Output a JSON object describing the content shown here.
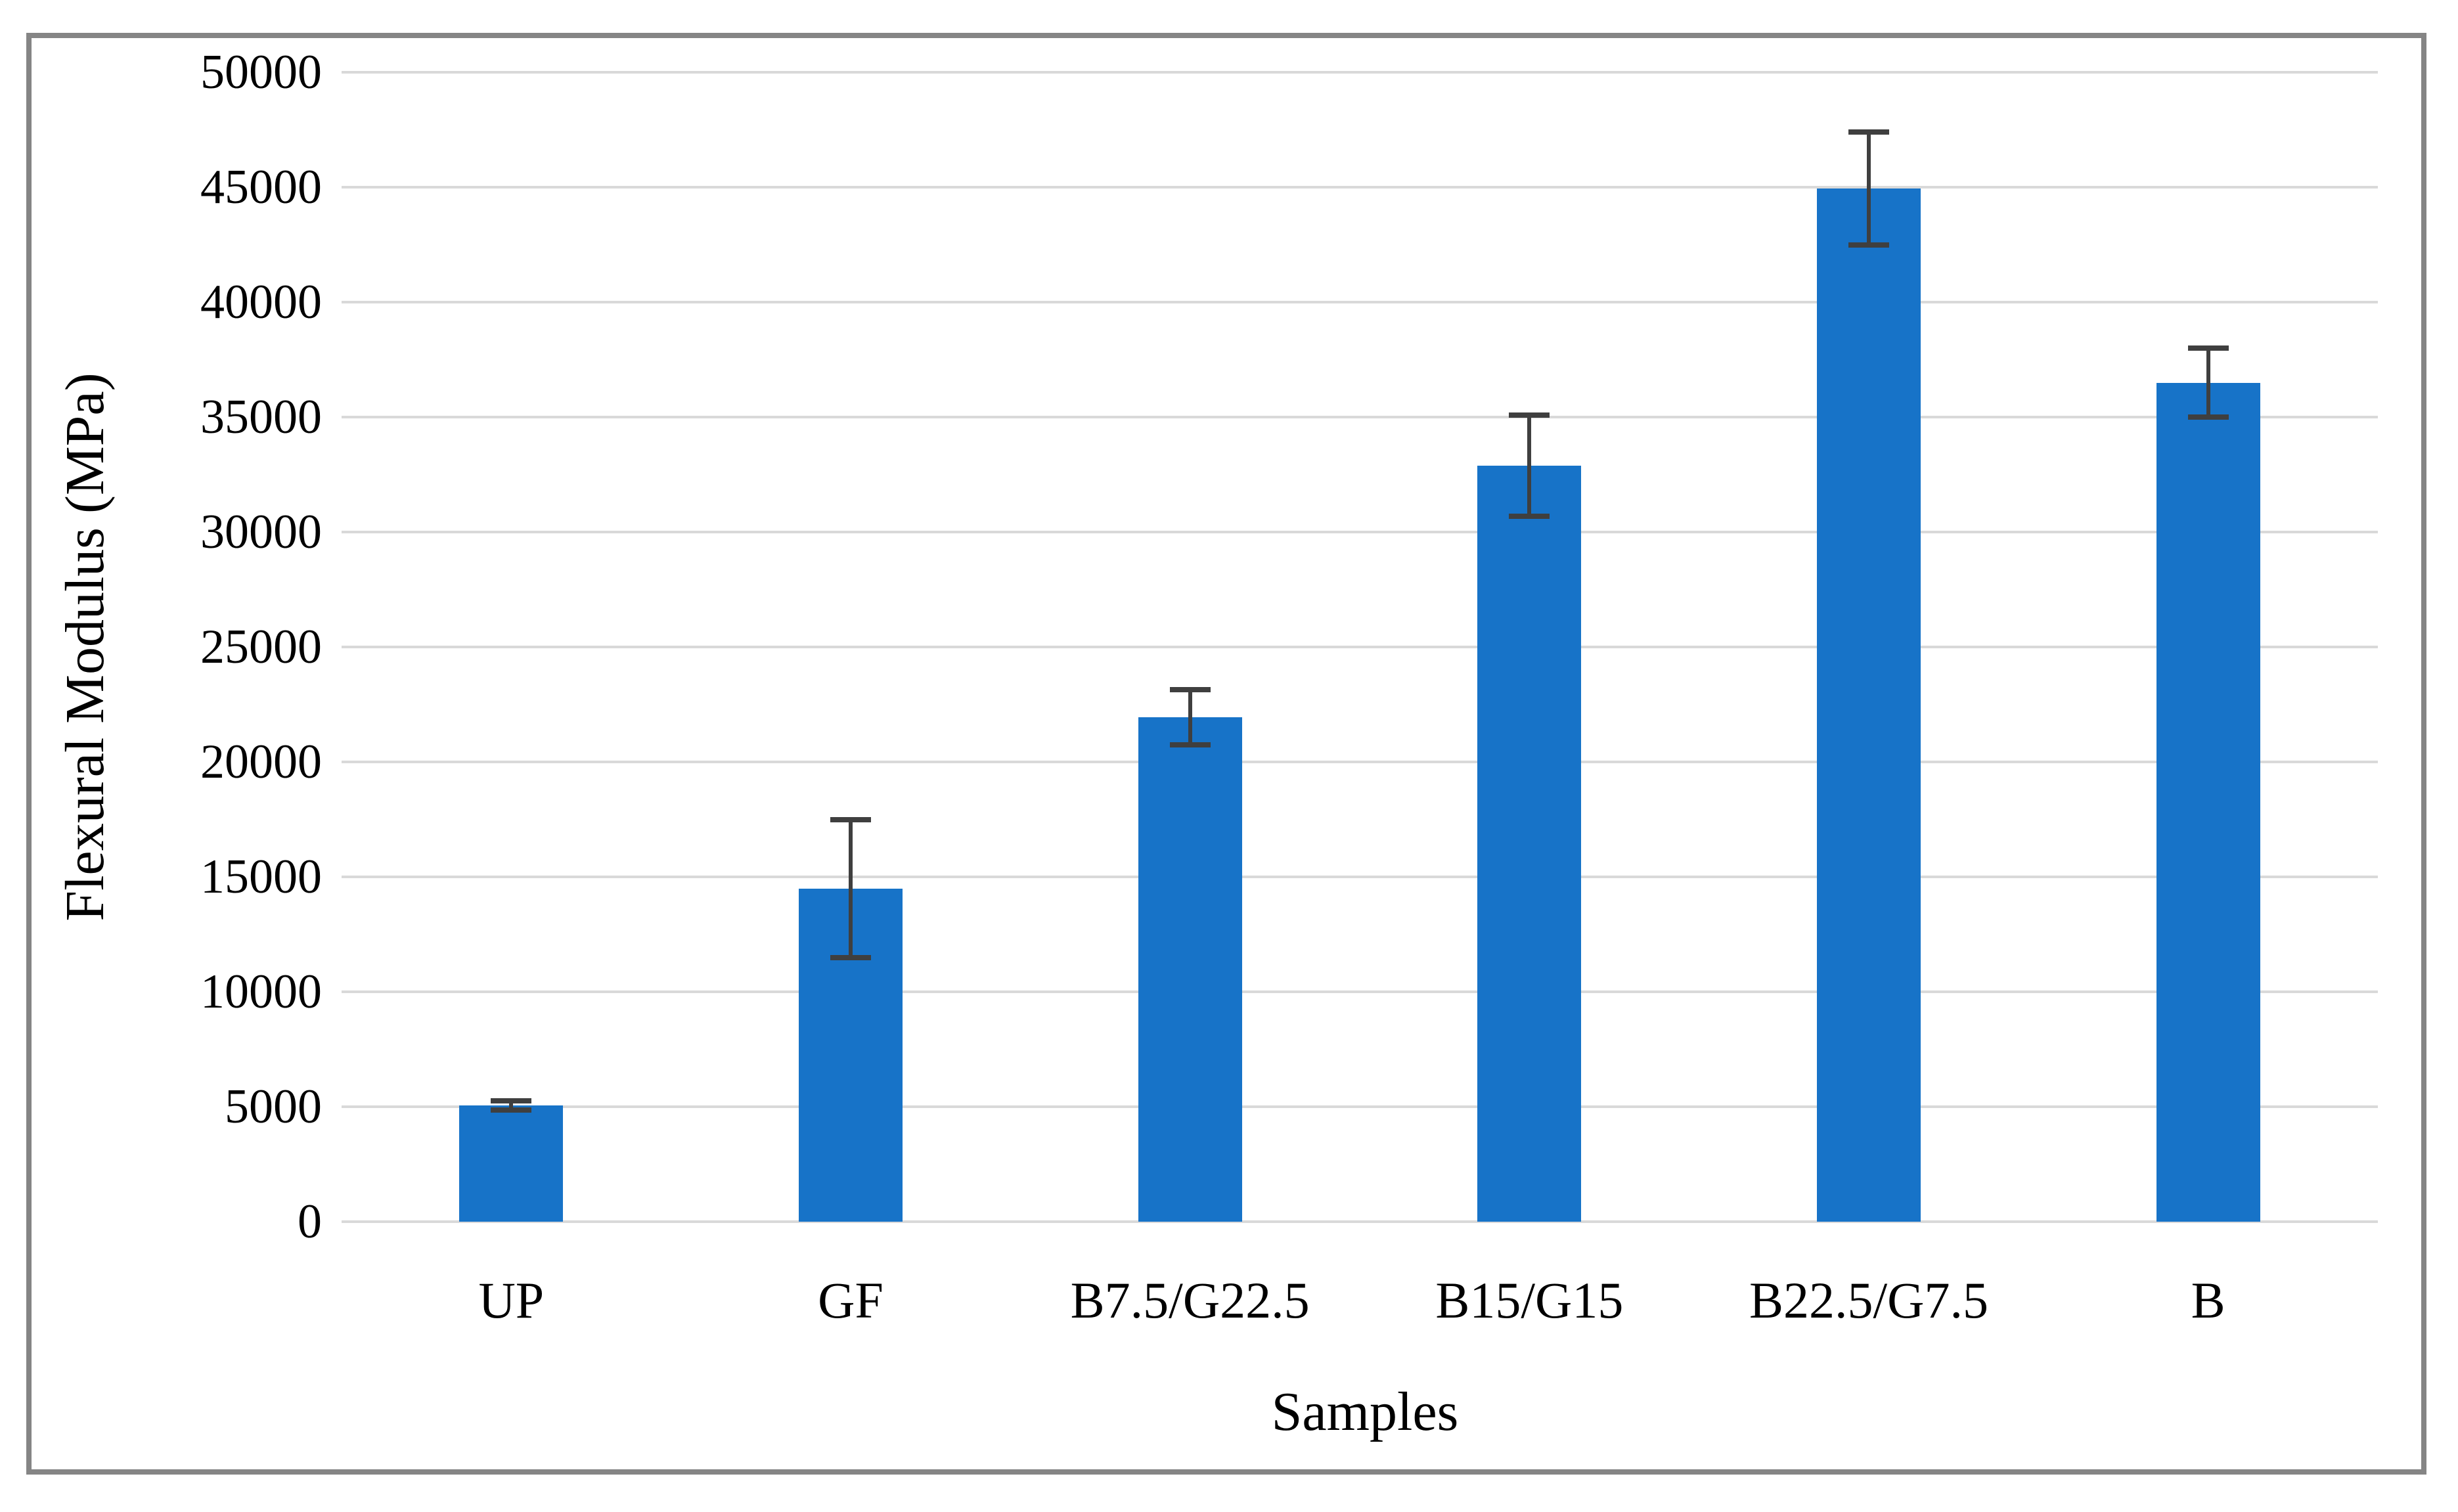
{
  "figure": {
    "background": "#ffffff",
    "border_color": "#858585"
  },
  "colors": {
    "bar": "#1773C8",
    "gridline": "#D9D9D9",
    "axis_line": "#D9D9D9",
    "error_bar": "#3F3F3F",
    "text": "#000000",
    "border": "#858585"
  },
  "chart_data": {
    "type": "bar",
    "title": "",
    "xlabel": "Samples",
    "ylabel": "Flexural Modulus (MPa)",
    "categories": [
      "UP",
      "GF",
      "B7.5/G22.5",
      "B15/G15",
      "B22.5/G7.5",
      "B"
    ],
    "values": [
      5050,
      14500,
      21950,
      32900,
      44950,
      36500
    ],
    "error_bars": [
      200,
      3000,
      1200,
      2200,
      2450,
      1500
    ],
    "ylim": [
      0,
      50000
    ],
    "ytick_interval": 5000,
    "yticks": [
      0,
      5000,
      10000,
      15000,
      20000,
      25000,
      30000,
      35000,
      40000,
      45000,
      50000
    ],
    "grid": "horizontal",
    "legend": "none",
    "bar_color": "#1773C8",
    "error_bar_color": "#3F3F3F"
  }
}
